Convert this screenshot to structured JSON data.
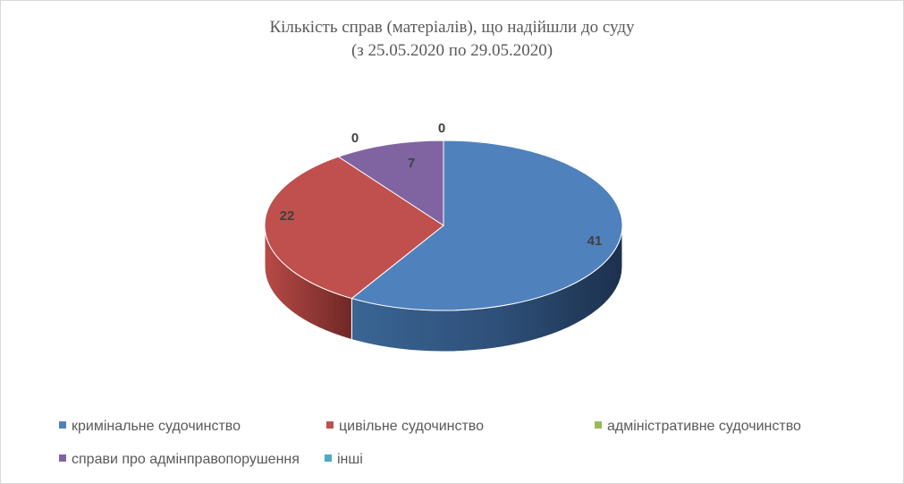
{
  "colors": {
    "criminal": "#4f81bd",
    "civil": "#c0504d",
    "administrative": "#9bbb59",
    "admin_offenses": "#8064a2",
    "other": "#4bacc6"
  },
  "chart_data": {
    "type": "pie",
    "title_line1": "Кількість справ (матеріалів), що надійшли до суду",
    "title_line2": "(з 25.05.2020 по 29.05.2020)",
    "categories": [
      "кримінальне судочинство",
      "цивільне судочинство",
      "адміністративне судочинство",
      "справи про адмінправопорушення",
      "інші"
    ],
    "values": [
      41,
      22,
      0,
      7,
      0
    ],
    "data_labels": [
      "41",
      "22",
      "0",
      "7",
      "0"
    ],
    "legend_position": "bottom"
  }
}
